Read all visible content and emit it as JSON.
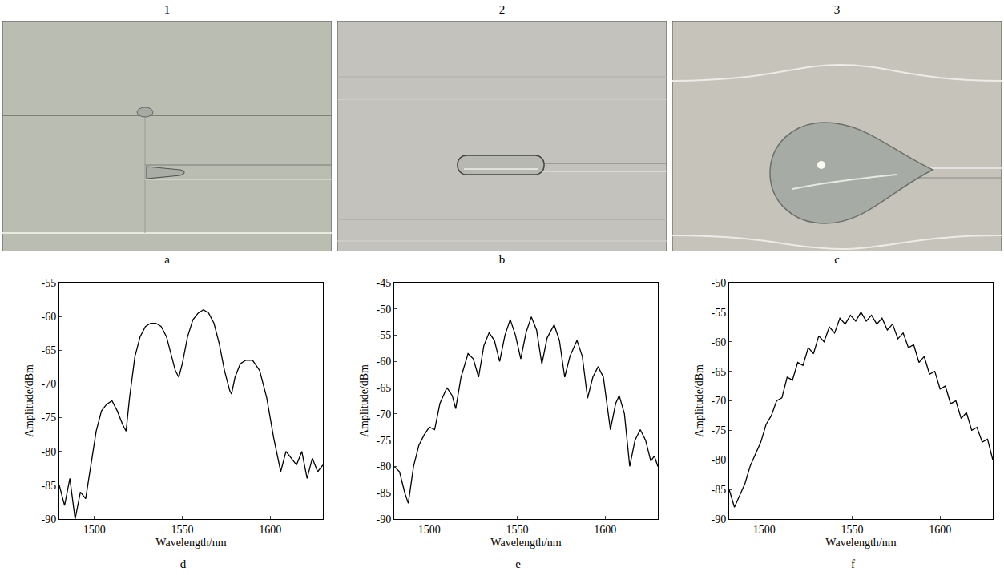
{
  "images": [
    {
      "column": "1",
      "label": "a"
    },
    {
      "column": "2",
      "label": "b"
    },
    {
      "column": "3",
      "label": "c"
    }
  ],
  "panel_labels": [
    "d",
    "e",
    "f"
  ],
  "chart_data": [
    {
      "type": "line",
      "x_label": "Wavelength/nm",
      "y_label": "Amplitude/dBm",
      "color": "#000000",
      "grid": false,
      "xlim": [
        1480,
        1630
      ],
      "xticks": [
        1500,
        1550,
        1600
      ],
      "ylim": [
        -90,
        -55
      ],
      "yticks": [
        -90,
        -85,
        -80,
        -75,
        -70,
        -65,
        -60,
        -55
      ],
      "x": [
        1480,
        1483,
        1486,
        1489,
        1492,
        1495,
        1498,
        1501,
        1504,
        1507,
        1510,
        1513,
        1516,
        1518,
        1520,
        1523,
        1526,
        1529,
        1532,
        1535,
        1538,
        1541,
        1544,
        1546,
        1548,
        1550,
        1553,
        1556,
        1559,
        1562,
        1565,
        1568,
        1571,
        1574,
        1577,
        1578,
        1580,
        1583,
        1586,
        1590,
        1594,
        1598,
        1602,
        1606,
        1609,
        1612,
        1615,
        1618,
        1621,
        1624,
        1627,
        1630
      ],
      "values": [
        -85,
        -88,
        -84,
        -90,
        -86,
        -87,
        -82,
        -77,
        -74,
        -73,
        -72.5,
        -74,
        -76,
        -77,
        -72,
        -66,
        -63,
        -61.5,
        -61,
        -61,
        -61.5,
        -63,
        -66,
        -68,
        -69,
        -67,
        -63,
        -60.5,
        -59.5,
        -59,
        -59.5,
        -61,
        -64,
        -68,
        -71,
        -71.5,
        -69,
        -67,
        -66.5,
        -66.5,
        -68,
        -72,
        -78,
        -83,
        -80,
        -81,
        -82,
        -80,
        -84,
        -81,
        -83,
        -82
      ]
    },
    {
      "type": "line",
      "x_label": "Wavelength/nm",
      "y_label": "Amplitude/dBm",
      "color": "#000000",
      "grid": false,
      "xlim": [
        1480,
        1630
      ],
      "xticks": [
        1500,
        1550,
        1600
      ],
      "ylim": [
        -90,
        -45
      ],
      "yticks": [
        -90,
        -85,
        -80,
        -75,
        -70,
        -65,
        -60,
        -55,
        -50,
        -45
      ],
      "x": [
        1480,
        1483,
        1486,
        1488,
        1491,
        1494,
        1497,
        1500,
        1503,
        1506,
        1510,
        1513,
        1515,
        1518,
        1522,
        1525,
        1528,
        1531,
        1534,
        1537,
        1540,
        1543,
        1546,
        1549,
        1552,
        1555,
        1558,
        1561,
        1564,
        1567,
        1571,
        1574,
        1577,
        1580,
        1584,
        1587,
        1590,
        1593,
        1596,
        1599,
        1603,
        1606,
        1608,
        1611,
        1614,
        1617,
        1620,
        1623,
        1626,
        1628,
        1630
      ],
      "values": [
        -80,
        -81,
        -85,
        -87,
        -80,
        -76,
        -74,
        -72.5,
        -73,
        -68,
        -65,
        -66.5,
        -69,
        -63,
        -58.5,
        -59.5,
        -63,
        -57,
        -54.5,
        -56,
        -60,
        -55,
        -52,
        -55,
        -59.5,
        -54.5,
        -51.5,
        -54,
        -60.5,
        -55.5,
        -53,
        -56,
        -63,
        -59,
        -56,
        -59,
        -67,
        -63,
        -61,
        -63,
        -73,
        -68,
        -66.5,
        -70,
        -80,
        -75,
        -73,
        -75,
        -79,
        -78,
        -80
      ]
    },
    {
      "type": "line",
      "x_label": "Wavelength/nm",
      "y_label": "Amplitude/dBm",
      "color": "#000000",
      "grid": false,
      "xlim": [
        1480,
        1630
      ],
      "xticks": [
        1500,
        1550,
        1600
      ],
      "ylim": [
        -90,
        -50
      ],
      "yticks": [
        -90,
        -85,
        -80,
        -75,
        -70,
        -65,
        -60,
        -55,
        -50
      ],
      "x": [
        1480,
        1483,
        1486,
        1489,
        1492,
        1495,
        1498,
        1501,
        1504,
        1507,
        1510,
        1513,
        1516,
        1519,
        1522,
        1525,
        1528,
        1531,
        1534,
        1537,
        1540,
        1543,
        1546,
        1549,
        1552,
        1555,
        1558,
        1561,
        1564,
        1567,
        1570,
        1573,
        1576,
        1579,
        1582,
        1585,
        1588,
        1591,
        1594,
        1597,
        1600,
        1603,
        1606,
        1609,
        1612,
        1615,
        1618,
        1621,
        1624,
        1627,
        1630
      ],
      "values": [
        -85,
        -88,
        -86,
        -84,
        -81,
        -79,
        -77,
        -74,
        -72.5,
        -70,
        -69.5,
        -66,
        -66.5,
        -63.5,
        -64,
        -61,
        -62,
        -59,
        -60,
        -57.5,
        -58.5,
        -56,
        -57,
        -55.5,
        -56.5,
        -55,
        -56.5,
        -55.5,
        -57,
        -56,
        -58,
        -57,
        -59.5,
        -58.5,
        -61,
        -60.5,
        -63.5,
        -62.5,
        -65.5,
        -65,
        -68,
        -67.5,
        -70.5,
        -70,
        -73,
        -72,
        -75,
        -74.5,
        -77,
        -76.5,
        -80
      ]
    }
  ]
}
